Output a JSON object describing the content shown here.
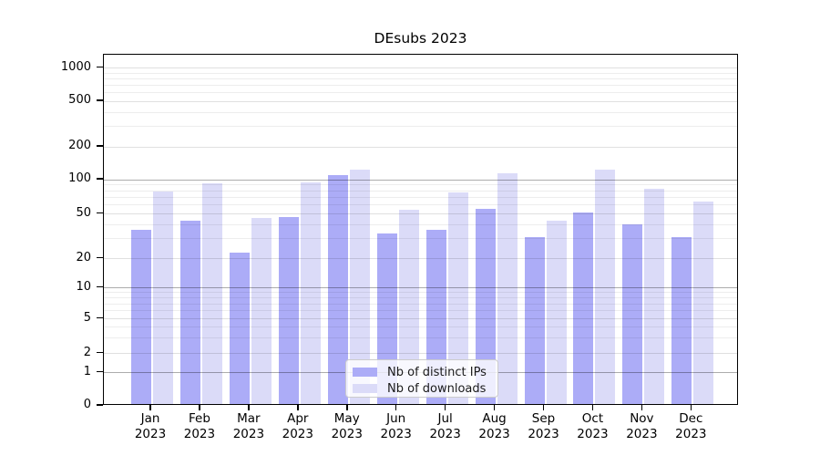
{
  "figure": {
    "title": "DEsubs 2023",
    "background": "#ffffff"
  },
  "chart_data": {
    "type": "bar",
    "title": "DEsubs 2023",
    "categories": [
      "Jan",
      "Feb",
      "Mar",
      "Apr",
      "May",
      "Jun",
      "Jul",
      "Aug",
      "Sep",
      "Oct",
      "Nov",
      "Dec"
    ],
    "x_tick_second_line": "2023",
    "series": [
      {
        "name": "Nb of distinct IPs",
        "color": "#acacf7",
        "values": [
          35,
          42,
          22,
          45,
          105,
          32,
          35,
          53,
          30,
          50,
          39,
          30
        ]
      },
      {
        "name": "Nb of downloads",
        "color": "#dbdbf8",
        "values": [
          76,
          90,
          44,
          92,
          120,
          52,
          75,
          110,
          42,
          120,
          80,
          62
        ]
      }
    ],
    "y_ticks": [
      0,
      1,
      2,
      5,
      10,
      20,
      50,
      100,
      200,
      500,
      1000
    ],
    "y_minor_ticks": [
      3,
      4,
      6,
      7,
      8,
      9,
      30,
      40,
      60,
      70,
      80,
      90,
      300,
      400,
      600,
      700,
      800,
      900
    ],
    "y_scale": "symlog",
    "ylim": [
      0,
      1400
    ],
    "xlabel": "",
    "ylabel": "",
    "grid": true,
    "legend_position": "lower center"
  },
  "legend": {
    "items": [
      {
        "label": "Nb of distinct IPs",
        "color": "#acacf7"
      },
      {
        "label": "Nb of downloads",
        "color": "#dbdbf8"
      }
    ]
  }
}
